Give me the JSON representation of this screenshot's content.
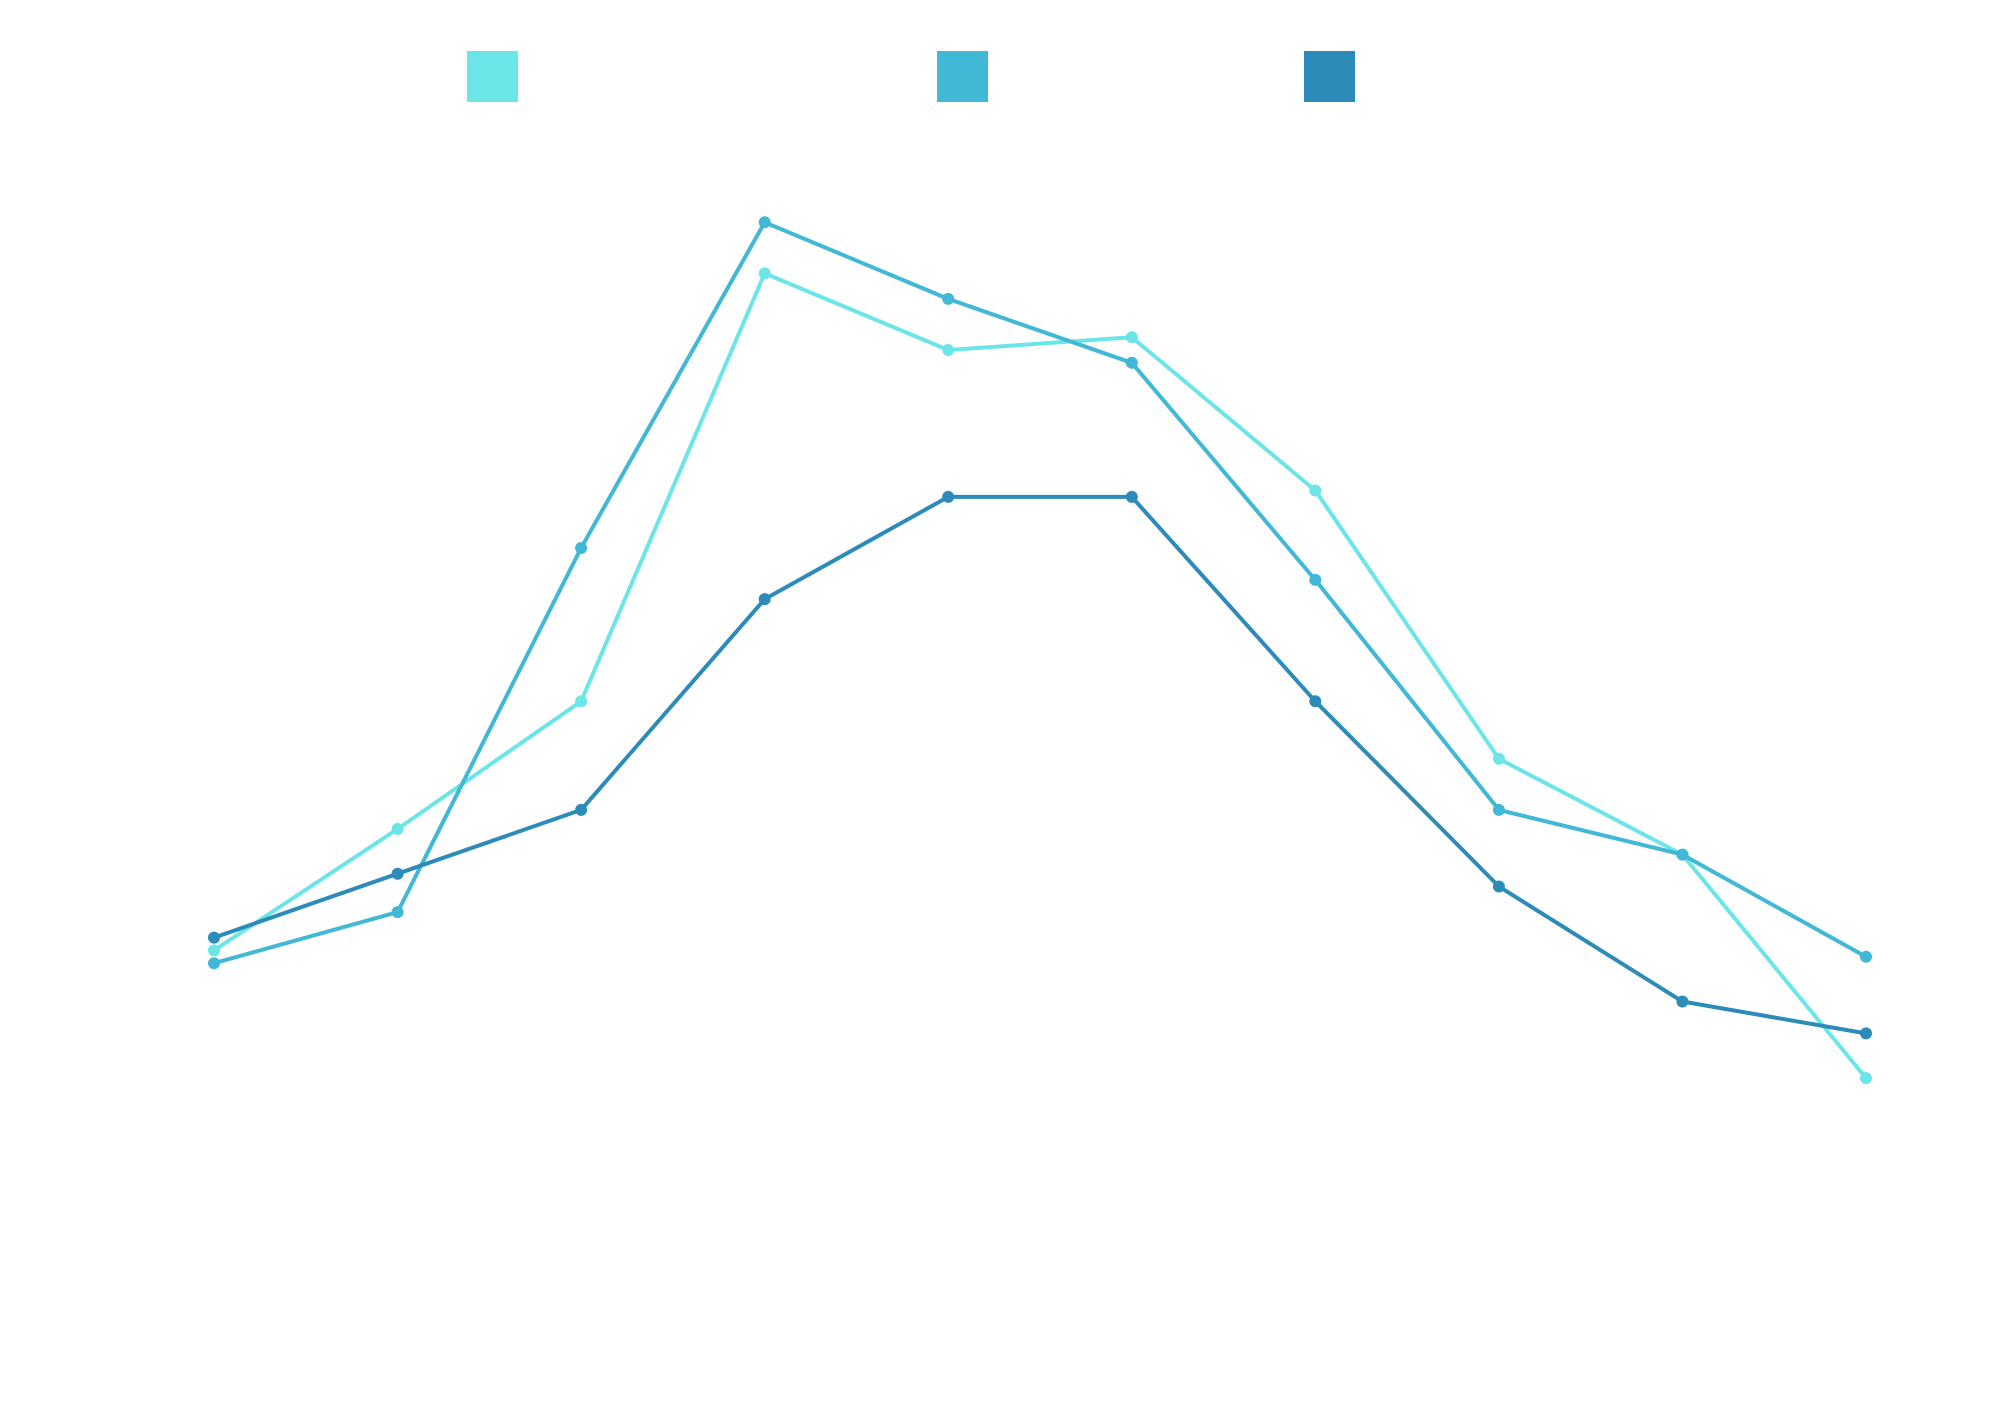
{
  "chart_data": {
    "type": "line",
    "x": [
      1,
      2,
      3,
      4,
      5,
      6,
      7,
      8,
      9,
      10
    ],
    "series": [
      {
        "color": "#6ce5e8",
        "values": [
          1.0,
          2.9,
          4.9,
          11.6,
          10.4,
          10.6,
          8.2,
          4.0,
          2.5,
          -1.0
        ]
      },
      {
        "color": "#41b8d5",
        "values": [
          0.8,
          1.6,
          7.3,
          12.4,
          11.2,
          10.2,
          6.8,
          3.2,
          2.5,
          0.9
        ]
      },
      {
        "color": "#2d8bba",
        "values": [
          1.2,
          2.2,
          3.2,
          6.5,
          8.1,
          8.1,
          4.9,
          2.0,
          0.2,
          -0.3
        ]
      }
    ],
    "xlim": [
      1,
      10
    ],
    "ylim": [
      -2,
      13.5
    ],
    "legend": "top",
    "grid": false
  }
}
